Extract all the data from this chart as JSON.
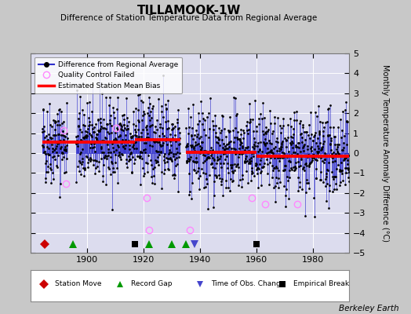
{
  "title": "TILLAMOOK-1W",
  "subtitle": "Difference of Station Temperature Data from Regional Average",
  "ylabel": "Monthly Temperature Anomaly Difference (°C)",
  "ylim": [
    -5,
    5
  ],
  "xlim": [
    1880,
    1993
  ],
  "xticks": [
    1900,
    1920,
    1940,
    1960,
    1980
  ],
  "yticks": [
    -5,
    -4,
    -3,
    -2,
    -1,
    0,
    1,
    2,
    3,
    4,
    5
  ],
  "background_color": "#c8c8c8",
  "plot_bg_color": "#dcdcee",
  "line_color": "#3030cc",
  "dot_color": "#000000",
  "bias_color": "#ff0000",
  "watermark": "Berkeley Earth",
  "seed": 42,
  "data_gaps": [
    [
      1893,
      1896
    ],
    [
      1933,
      1935
    ]
  ],
  "record_gaps": [
    1895,
    1922,
    1930,
    1935
  ],
  "time_obs_changes": [
    1938
  ],
  "empirical_breaks": [
    1917,
    1960
  ],
  "station_moves": [
    1885
  ],
  "qc_failed": [
    [
      1891.5,
      1.15
    ],
    [
      1892.3,
      -1.55
    ],
    [
      1910.2,
      1.25
    ],
    [
      1921.0,
      -2.25
    ],
    [
      1921.8,
      -3.85
    ],
    [
      1936.5,
      -3.85
    ],
    [
      1958.3,
      -2.25
    ],
    [
      1963.0,
      -2.55
    ],
    [
      1974.5,
      -2.55
    ]
  ],
  "segments": [
    {
      "start": 1884,
      "end": 1917,
      "bias": 0.55
    },
    {
      "start": 1917,
      "end": 1933,
      "bias": 0.65
    },
    {
      "start": 1935,
      "end": 1960,
      "bias": 0.05
    },
    {
      "start": 1960,
      "end": 1993,
      "bias": -0.15
    }
  ],
  "noise_std": 1.05,
  "year_start": 1884,
  "year_end": 1993,
  "figsize": [
    5.24,
    4.0
  ],
  "dpi": 100
}
